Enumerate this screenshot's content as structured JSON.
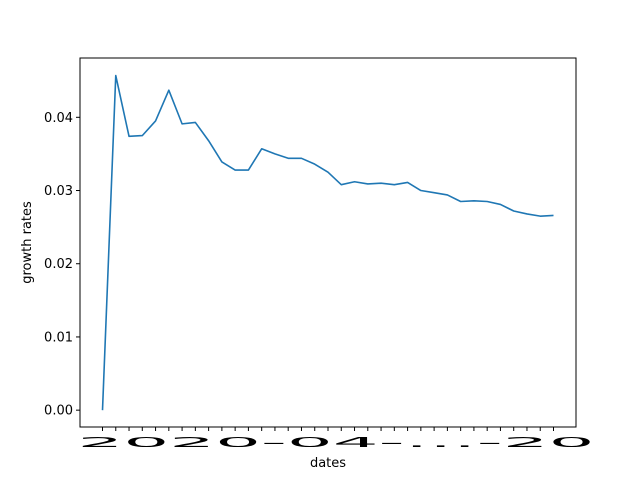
{
  "chart_data": {
    "type": "line",
    "title": "",
    "xlabel": "dates",
    "ylabel": "growth rates",
    "ylim": [
      -0.0023,
      0.0481
    ],
    "yticks": [
      "0.00",
      "0.01",
      "0.02",
      "0.03",
      "0.04"
    ],
    "ytick_values": [
      0.0,
      0.01,
      0.02,
      0.03,
      0.04
    ],
    "x_tick_labels_overlapping": "2020-04-…-20",
    "series": [
      {
        "color": "#1f77b4",
        "values": [
          0.0,
          0.0457,
          0.0374,
          0.0375,
          0.0395,
          0.0437,
          0.0391,
          0.0393,
          0.0368,
          0.0339,
          0.0328,
          0.0328,
          0.0357,
          0.035,
          0.0344,
          0.0344,
          0.0336,
          0.0325,
          0.0308,
          0.0312,
          0.0309,
          0.031,
          0.0308,
          0.0311,
          0.03,
          0.0297,
          0.0294,
          0.0285,
          0.0286,
          0.0285,
          0.0281,
          0.0272,
          0.0268,
          0.0265,
          0.0266
        ]
      }
    ],
    "grid": false,
    "legend": "none"
  }
}
